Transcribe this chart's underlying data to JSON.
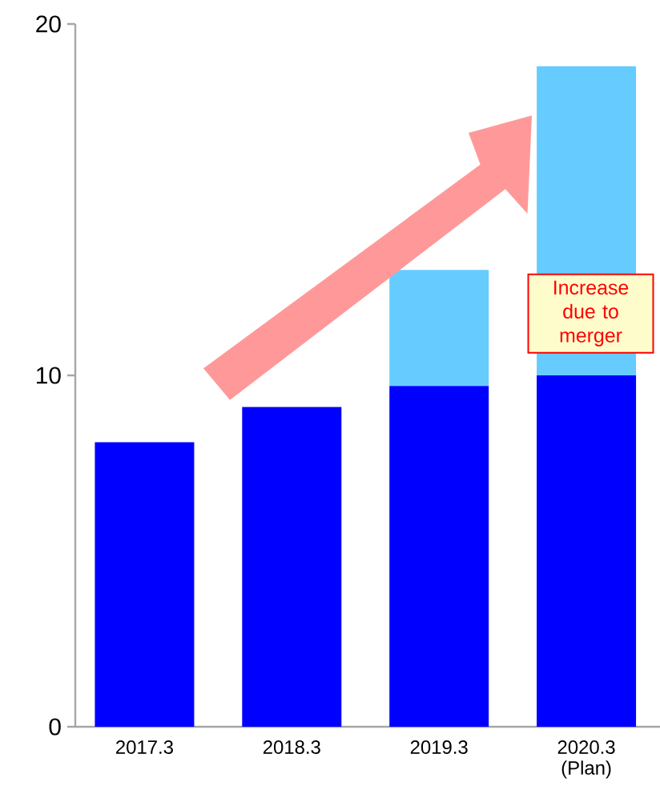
{
  "chart_data": {
    "type": "bar",
    "stacked": true,
    "categories": [
      "2017.3",
      "2018.3",
      "2019.3",
      "2020.3 (Plan)"
    ],
    "series": [
      {
        "color": "#0000ff",
        "values": [
          8.1,
          9.1,
          9.7,
          10
        ]
      },
      {
        "color": "#66ccff",
        "values": [
          null,
          null,
          3.3,
          8.8
        ]
      }
    ],
    "ylim": [
      0,
      20
    ],
    "yticks": [
      0,
      10,
      20
    ],
    "annotations": [
      "Increase due to merger"
    ]
  }
}
